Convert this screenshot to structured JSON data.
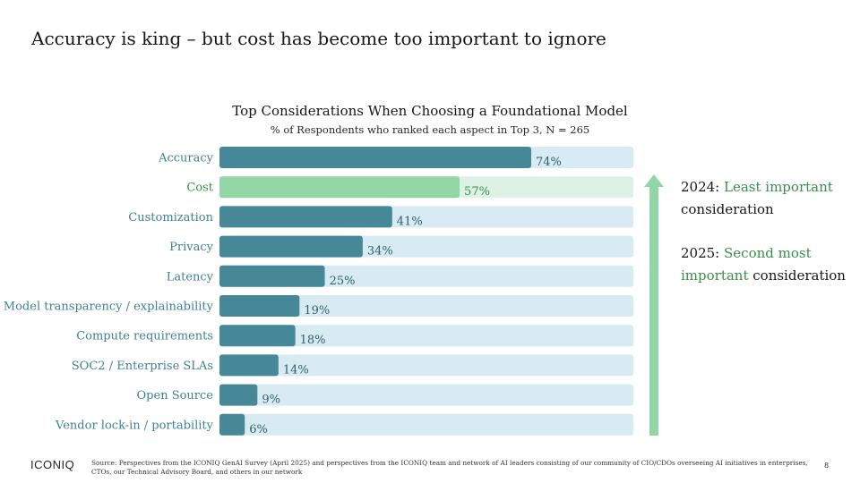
{
  "slide": {
    "title": "Accuracy is king – but cost has become too important to ignore",
    "logo": "ICONIQ",
    "source": "Source: Perspectives from the ICONIQ GenAI Survey (April 2025) and perspectives from the ICONIQ team and network of AI leaders consisting of our community of CIO/CDOs overseeing AI initiatives in enterprises, CTOs, our Technical Advisory Board, and others in our network",
    "page_number": "8"
  },
  "chart_data": {
    "type": "bar",
    "orientation": "horizontal",
    "title": "Top Considerations When Choosing a Foundational Model",
    "subtitle": "% of Respondents who ranked each aspect in Top 3, N = 265",
    "categories": [
      "Accuracy",
      "Cost",
      "Customization",
      "Privacy",
      "Latency",
      "Model transparency / explainability",
      "Compute requirements",
      "SOC2 / Enterprise SLAs",
      "Open Source",
      "Vendor lock-in / portability"
    ],
    "values": [
      74,
      57,
      41,
      34,
      25,
      19,
      18,
      14,
      9,
      6
    ],
    "value_labels": [
      "74%",
      "57%",
      "41%",
      "34%",
      "25%",
      "19%",
      "18%",
      "14%",
      "9%",
      "6%"
    ],
    "highlight_category": "Cost",
    "xlim": [
      0,
      100
    ],
    "grid": false,
    "colors": {
      "bar": "#468897",
      "bar_track": "#d9ebf2",
      "highlight_bar": "#93d6a5",
      "highlight_track": "#ddf1e4",
      "label": "#3f8190",
      "highlight_label": "#3b8c4e",
      "value_label": "#2e5f6b",
      "arrow": "#93d6a5"
    }
  },
  "annotations": {
    "note_2024": {
      "year": "2024:",
      "highlight": "Least important",
      "rest": "consideration"
    },
    "note_2025": {
      "year": "2025:",
      "highlight": "Second most important",
      "rest": "consideration"
    }
  }
}
